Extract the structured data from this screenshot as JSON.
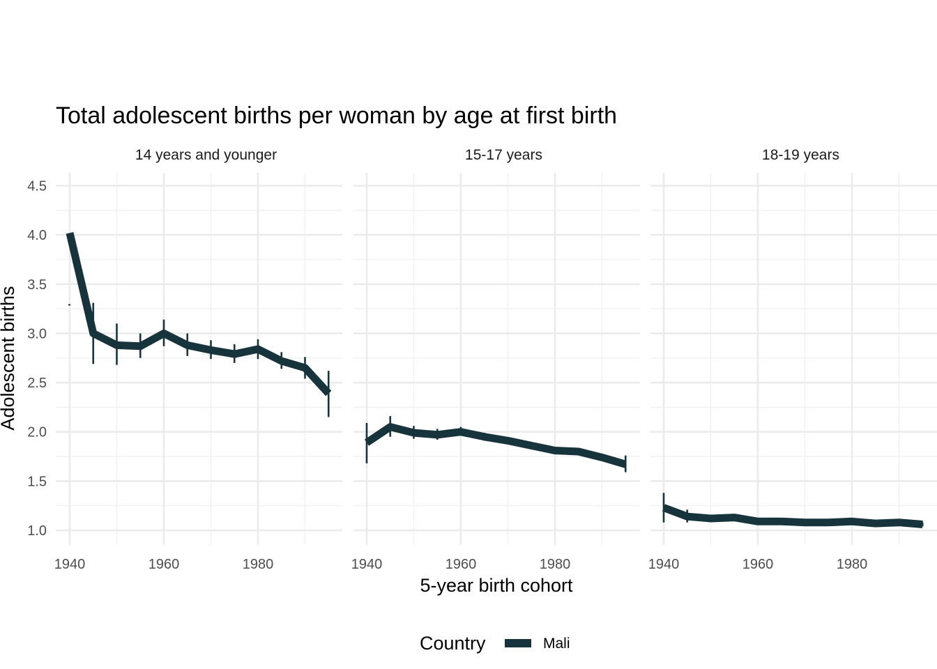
{
  "chart_data": {
    "type": "line",
    "title": "Total adolescent births per woman by age at first birth",
    "xlabel": "5-year birth cohort",
    "ylabel": "Adolescent births",
    "xlim": [
      1940,
      1995
    ],
    "ylim": [
      1.0,
      4.5
    ],
    "x_ticks": [
      "1940",
      "1960",
      "1980"
    ],
    "y_ticks": [
      "1.0",
      "1.5",
      "2.0",
      "2.5",
      "3.0",
      "3.5",
      "4.0",
      "4.5"
    ],
    "grid": true,
    "legend": {
      "title": "Country",
      "position": "bottom"
    },
    "series_color": "#17343d",
    "panels": [
      {
        "label": "14 years and younger",
        "series": [
          {
            "name": "Mali",
            "x": [
              1940,
              1945,
              1950,
              1955,
              1960,
              1965,
              1970,
              1975,
              1980,
              1985,
              1990,
              1995
            ],
            "values": [
              4.02,
              3.0,
              2.88,
              2.87,
              3.0,
              2.88,
              2.83,
              2.79,
              2.84,
              2.72,
              2.65,
              2.39
            ],
            "lower": [
              4.02,
              2.69,
              2.68,
              2.75,
              2.87,
              2.77,
              2.74,
              2.7,
              2.74,
              2.64,
              2.54,
              2.15
            ],
            "upper": [
              4.02,
              3.31,
              3.1,
              3.0,
              3.14,
              3.0,
              2.93,
              2.89,
              2.94,
              2.81,
              2.76,
              2.62
            ]
          }
        ]
      },
      {
        "label": "15-17 years",
        "series": [
          {
            "name": "Mali",
            "x": [
              1940,
              1945,
              1950,
              1955,
              1960,
              1965,
              1970,
              1975,
              1980,
              1985,
              1990,
              1995
            ],
            "values": [
              1.89,
              2.05,
              1.99,
              1.97,
              2.0,
              1.95,
              1.91,
              1.86,
              1.81,
              1.8,
              1.74,
              1.67
            ],
            "lower": [
              1.68,
              1.95,
              1.93,
              1.92,
              1.96,
              1.91,
              1.88,
              1.83,
              1.79,
              1.77,
              1.71,
              1.59
            ],
            "upper": [
              2.09,
              2.16,
              2.06,
              2.03,
              2.05,
              1.99,
              1.94,
              1.89,
              1.84,
              1.83,
              1.78,
              1.76
            ]
          }
        ]
      },
      {
        "label": "18-19 years",
        "series": [
          {
            "name": "Mali",
            "x": [
              1940,
              1945,
              1950,
              1955,
              1960,
              1965,
              1970,
              1975,
              1980,
              1985,
              1990,
              1995
            ],
            "values": [
              1.23,
              1.14,
              1.12,
              1.13,
              1.09,
              1.09,
              1.08,
              1.08,
              1.09,
              1.07,
              1.08,
              1.06
            ],
            "lower": [
              1.08,
              1.08,
              1.09,
              1.1,
              1.07,
              1.07,
              1.06,
              1.06,
              1.07,
              1.05,
              1.06,
              1.04
            ],
            "upper": [
              1.38,
              1.21,
              1.15,
              1.16,
              1.11,
              1.11,
              1.1,
              1.1,
              1.11,
              1.09,
              1.1,
              1.08
            ]
          }
        ]
      }
    ]
  }
}
